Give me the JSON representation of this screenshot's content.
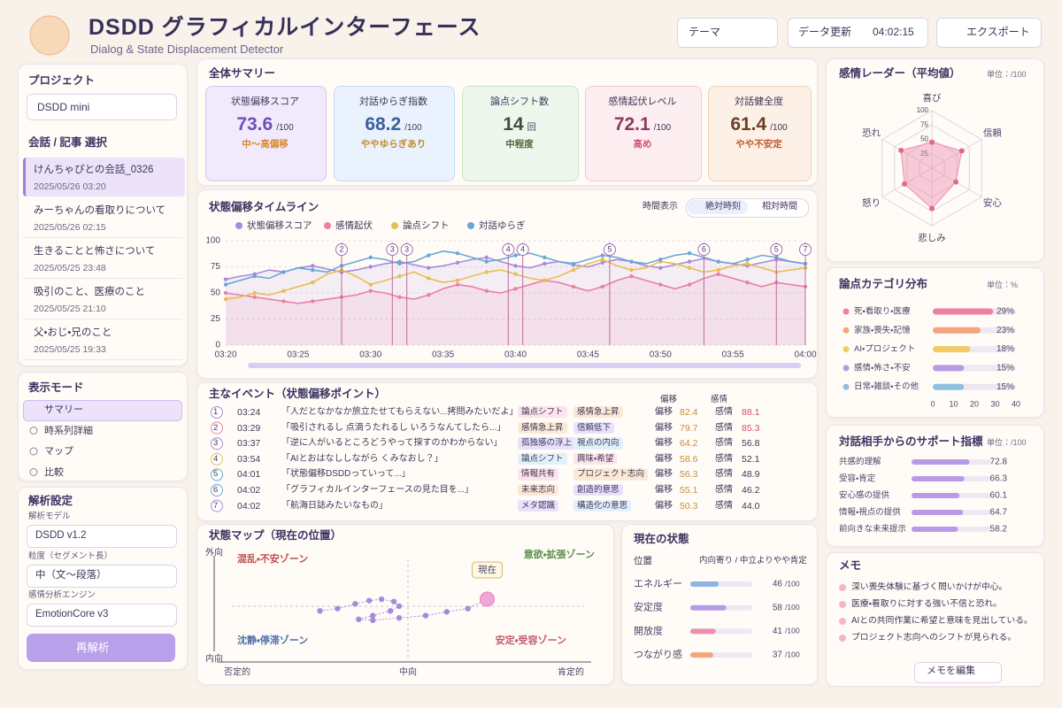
{
  "header": {
    "title": "DSDD グラフィカルインターフェース",
    "subtitle": "Dialog & State Displacement Detector",
    "buttons": {
      "theme": "テーマ",
      "refresh": "データ更新",
      "time": "04:02:15",
      "export": "エクスポート"
    }
  },
  "sidebar": {
    "project": {
      "label": "プロジェクト",
      "selected": "DSDD mini"
    },
    "conversations": {
      "label": "会話 / 記事 選択",
      "items": [
        {
          "title": "けんちゃぴとの会話_0326",
          "date": "2025/05/26 03:20"
        },
        {
          "title": "みーちゃんの看取りについて",
          "date": "2025/05/26 02:15"
        },
        {
          "title": "生きることと怖さについて",
          "date": "2025/05/25 23:48"
        },
        {
          "title": "吸引のこと、医療のこと",
          "date": "2025/05/25 21:10"
        },
        {
          "title": "父・おじ・兄のこと",
          "date": "2025/05/25 19:33"
        }
      ]
    },
    "view_mode": {
      "label": "表示モード",
      "items": [
        "サマリー",
        "時系列詳細",
        "マップ",
        "比較"
      ]
    },
    "settings": {
      "label": "解析設定",
      "fields": [
        {
          "label": "解析モデル",
          "value": "DSDD v1.2"
        },
        {
          "label": "粒度（セグメント長）",
          "value": "中（文〜段落）"
        },
        {
          "label": "感情分析エンジン",
          "value": "EmotionCore v3"
        }
      ],
      "button": "再解析"
    }
  },
  "summary": {
    "title": "全体サマリー",
    "cards": [
      {
        "label": "状態偏移スコア",
        "value": 73.6,
        "unit": "/100",
        "status": "中〜高偏移"
      },
      {
        "label": "対話ゆらぎ指数",
        "value": 68.2,
        "unit": "/100",
        "status": "ややゆらぎあり"
      },
      {
        "label": "論点シフト数",
        "value": 14,
        "unit": "回",
        "status": "中程度"
      },
      {
        "label": "感情起伏レベル",
        "value": 72.1,
        "unit": "/100",
        "status": "高め"
      },
      {
        "label": "対話健全度",
        "value": 61.4,
        "unit": "/100",
        "status": "やや不安定"
      }
    ]
  },
  "events": {
    "title": "主なイベント（状態偏移ポイント）",
    "columns": [
      "偏移",
      "感情"
    ],
    "rows": [
      {
        "no": 1,
        "time": "03:24",
        "text": "「人だとなかなか旅立たせてもらえない...拷問みたいだよ」",
        "tags": [
          "論点シフト",
          "感情急上昇"
        ],
        "shift": "82.4",
        "emotion": "88.1"
      },
      {
        "no": 2,
        "time": "03:29",
        "text": "「吸引されるし 点滴うたれるし いろうなんてしたら...」",
        "tags": [
          "感情急上昇",
          "信頼低下"
        ],
        "shift": "79.7",
        "emotion": "85.3"
      },
      {
        "no": 3,
        "time": "03:37",
        "text": "「逆に人がいるところどうやって探すのかわからない」",
        "tags": [
          "孤独感の浮上",
          "視点の内向"
        ],
        "shift": "64.2",
        "emotion": "56.8"
      },
      {
        "no": 4,
        "time": "03:54",
        "text": "「AIとおはなししながら くみなおし？」",
        "tags": [
          "論点シフト",
          "興味・希望"
        ],
        "shift": "58.6",
        "emotion": "52.1"
      },
      {
        "no": 5,
        "time": "04:01",
        "text": "「状態偏移DSDDっていって...」",
        "tags": [
          "情報共有",
          "プロジェクト志向"
        ],
        "shift": "56.3",
        "emotion": "48.9"
      },
      {
        "no": 6,
        "time": "04:02",
        "text": "「グラフィカルインターフェースの見た目を...」",
        "tags": [
          "未来志向",
          "創造的意思"
        ],
        "shift": "55.1",
        "emotion": "46.2"
      },
      {
        "no": 7,
        "time": "04:02",
        "text": "「航海日誌みたいなもの」",
        "tags": [
          "メタ認識",
          "構造化の意思"
        ],
        "shift": "50.3",
        "emotion": "44.0"
      }
    ]
  },
  "memo": {
    "title": "メモ",
    "items": [
      "深い喪失体験に基づく問いかけが中心。",
      "医療・看取りに対する強い不信と恐れ。",
      "AIとの共同作業に希望と意味を見出している。",
      "プロジェクト志向へのシフトが見られる。"
    ],
    "button": "メモを編集"
  },
  "chart_data": [
    {
      "type": "line",
      "title": "状態偏移タイムライン",
      "controls": {
        "label": "時間表示",
        "options": [
          "絶対時刻",
          "相対時間"
        ]
      },
      "categories": [
        "03:20",
        null,
        null,
        null,
        null,
        "03:25",
        null,
        null,
        null,
        null,
        "03:30",
        null,
        null,
        null,
        null,
        "03:35",
        null,
        null,
        null,
        null,
        "03:40",
        null,
        null,
        null,
        null,
        "03:45",
        null,
        null,
        null,
        null,
        "03:50",
        null,
        null,
        null,
        null,
        "03:55",
        null,
        null,
        null,
        null,
        "04:00"
      ],
      "series": [
        {
          "name": "状態偏移スコア",
          "color": "#a78bdb",
          "values": [
            63,
            66,
            68,
            72,
            70,
            74,
            76,
            73,
            70,
            72,
            75,
            78,
            80,
            77,
            74,
            76,
            79,
            82,
            84,
            80,
            76,
            74,
            78,
            80,
            77,
            75,
            79,
            82,
            80,
            76,
            74,
            77,
            80,
            83,
            80,
            78,
            76,
            79,
            82,
            80,
            78
          ]
        },
        {
          "name": "感情起伏",
          "color": "#ec7fa6",
          "values": [
            50,
            48,
            46,
            44,
            42,
            40,
            42,
            44,
            46,
            48,
            52,
            50,
            46,
            44,
            48,
            54,
            58,
            56,
            52,
            50,
            54,
            58,
            62,
            60,
            56,
            52,
            56,
            62,
            66,
            62,
            58,
            54,
            58,
            64,
            68,
            64,
            60,
            56,
            60,
            58,
            56
          ]
        },
        {
          "name": "論点シフト",
          "color": "#e9bd55",
          "values": [
            44,
            46,
            50,
            48,
            52,
            56,
            60,
            68,
            72,
            66,
            58,
            62,
            66,
            70,
            64,
            60,
            62,
            66,
            70,
            72,
            68,
            64,
            62,
            66,
            72,
            78,
            82,
            76,
            72,
            74,
            80,
            78,
            74,
            70,
            72,
            76,
            78,
            74,
            70,
            72,
            74
          ]
        },
        {
          "name": "対話ゆらぎ",
          "color": "#6aa6d6",
          "values": [
            58,
            62,
            66,
            64,
            70,
            74,
            72,
            70,
            76,
            80,
            84,
            82,
            78,
            80,
            86,
            90,
            88,
            84,
            80,
            82,
            86,
            88,
            84,
            80,
            78,
            82,
            86,
            84,
            80,
            78,
            82,
            86,
            88,
            84,
            80,
            78,
            82,
            86,
            84,
            80,
            78
          ]
        }
      ],
      "markers": [
        {
          "label": "2",
          "x": 8
        },
        {
          "label": "3",
          "x": 11.5
        },
        {
          "label": "3",
          "x": 12.5
        },
        {
          "label": "4",
          "x": 19.5
        },
        {
          "label": "4",
          "x": 20.5
        },
        {
          "label": "5",
          "x": 26.5
        },
        {
          "label": "6",
          "x": 33
        },
        {
          "label": "5",
          "x": 38
        },
        {
          "label": "7",
          "x": 40
        }
      ],
      "ylim": [
        0,
        100
      ],
      "yticks": [
        0,
        25,
        50,
        75,
        100
      ],
      "grid": true
    },
    {
      "type": "radar",
      "title": "感情レーダー（平均値）",
      "unit": "単位：/100",
      "categories": [
        "喜び",
        "信頼",
        "安心",
        "悲しみ",
        "怒り",
        "恐れ"
      ],
      "values": [
        45,
        60,
        48,
        70,
        55,
        62
      ],
      "color": "#ee8fb0",
      "ylim": [
        0,
        100
      ],
      "yticks": [
        25,
        50,
        75,
        100
      ]
    },
    {
      "type": "bar",
      "title": "論点カテゴリ分布",
      "unit": "単位：%",
      "categories": [
        "死・看取り・医療",
        "家族・喪失・記憶",
        "AI・プロジェクト",
        "感情・怖さ・不安",
        "日常・雑談・その他"
      ],
      "values": [
        29,
        23,
        18,
        15,
        15
      ],
      "value_labels": [
        "29%",
        "23%",
        "18%",
        "15%",
        "15%"
      ],
      "colors": [
        "#ee7fa5",
        "#f4a57c",
        "#f1cb63",
        "#b69be2",
        "#8fc0e0"
      ],
      "xlim": [
        0,
        40
      ],
      "xticks": [
        0,
        10,
        20,
        30,
        40
      ]
    },
    {
      "type": "bar",
      "title": "対話相手からのサポート指標",
      "unit": "単位：/100",
      "categories": [
        "共感的理解",
        "受容・肯定",
        "安心感の提供",
        "情報・視点の提供",
        "前向きな未来提示"
      ],
      "values": [
        72.8,
        66.3,
        60.1,
        64.7,
        58.2
      ],
      "color": "#b79be6",
      "xlim": [
        0,
        100
      ]
    },
    {
      "type": "scatter",
      "title": "状態マップ（現在の位置）",
      "axis_labels": {
        "top": "外向",
        "bottom": "内向",
        "left": "否定的",
        "center": "中向",
        "right": "肯定的"
      },
      "zones": [
        "混乱・不安ゾーン",
        "意欲・拡張ゾーン",
        "沈静・停滞ゾーン",
        "安定・受容ゾーン"
      ],
      "current_label": "現在",
      "x": [
        -0.5,
        -0.4,
        -0.3,
        -0.22,
        -0.15,
        -0.08,
        -0.05,
        -0.1,
        -0.2,
        -0.28,
        -0.2,
        -0.05,
        0.1,
        0.22,
        0.34,
        0.45
      ],
      "y": [
        -0.1,
        -0.05,
        0.05,
        0.12,
        0.15,
        0.1,
        0.0,
        -0.1,
        -0.2,
        -0.28,
        -0.3,
        -0.25,
        -0.2,
        -0.12,
        -0.05,
        0.15
      ],
      "color": "#a78bdb",
      "xlim": [
        -1,
        1
      ],
      "ylim": [
        -1,
        1
      ]
    },
    {
      "type": "bar",
      "title": "現在の状態",
      "header": "位置",
      "scale_label": "内向寄り / 中立よりやや肯定",
      "unit": "/100",
      "categories": [
        "エネルギー",
        "安定度",
        "開放度",
        "つながり感"
      ],
      "values": [
        46,
        58,
        41,
        37
      ],
      "colors": [
        "#8fb4e3",
        "#b79be6",
        "#ee8fb0",
        "#f0a87a"
      ],
      "xlim": [
        0,
        100
      ]
    }
  ]
}
